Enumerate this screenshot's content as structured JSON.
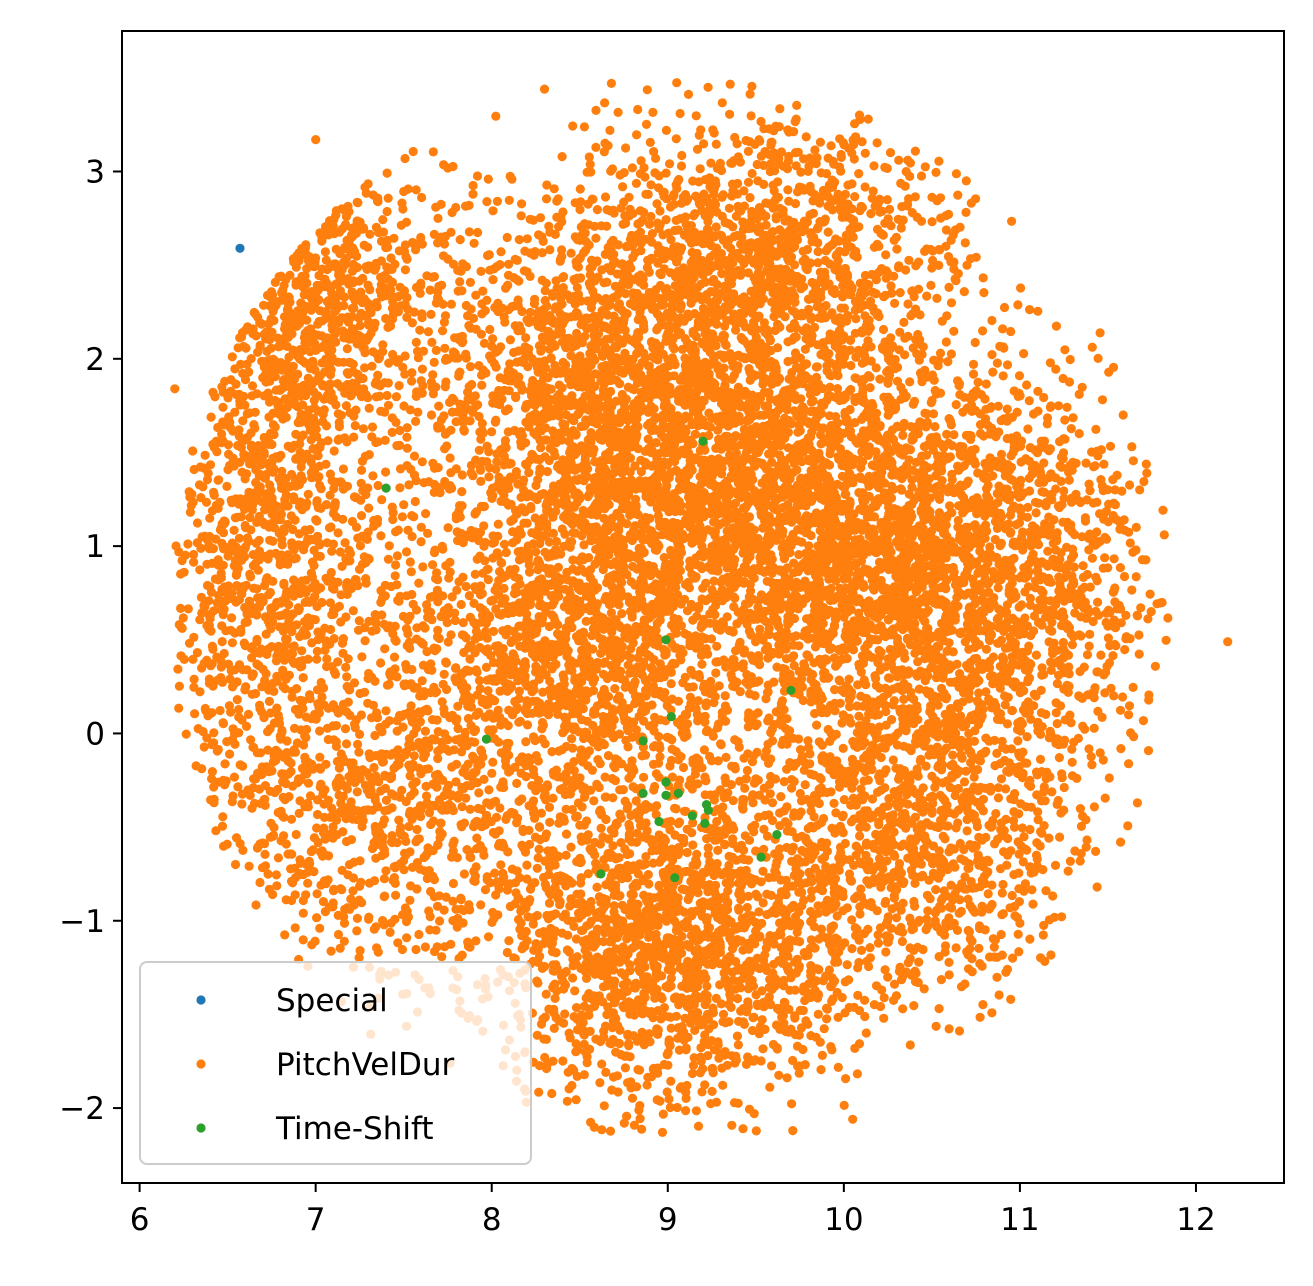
{
  "chart_data": {
    "type": "scatter",
    "title": "",
    "xlabel": "",
    "ylabel": "",
    "xlim": [
      5.9,
      12.5
    ],
    "ylim": [
      -2.4,
      3.75
    ],
    "xticks": [
      6,
      7,
      8,
      9,
      10,
      11,
      12
    ],
    "yticks": [
      -2,
      -1,
      0,
      1,
      2,
      3
    ],
    "grid": false,
    "legend_position": "lower-left",
    "series": [
      {
        "name": "Special",
        "color": "#1f77b4",
        "x": [
          6.57
        ],
        "y": [
          2.59
        ]
      },
      {
        "name": "PitchVelDur",
        "color": "#ff7f0e",
        "cloud": {
          "approx_count": 14000,
          "x_range": [
            6.2,
            11.85
          ],
          "y_range": [
            -2.15,
            3.5
          ],
          "components": [
            {
              "center": [
                7.0,
                2.35
              ],
              "spread": [
                0.35,
                0.45
              ],
              "weight": 0.07
            },
            {
              "center": [
                6.75,
                0.9
              ],
              "spread": [
                0.35,
                0.7
              ],
              "weight": 0.08
            },
            {
              "center": [
                7.3,
                -0.45
              ],
              "spread": [
                0.45,
                0.45
              ],
              "weight": 0.05
            },
            {
              "center": [
                8.6,
                1.75
              ],
              "spread": [
                0.5,
                0.5
              ],
              "weight": 0.12
            },
            {
              "center": [
                8.4,
                0.4
              ],
              "spread": [
                0.5,
                0.55
              ],
              "weight": 0.11
            },
            {
              "center": [
                9.0,
                -1.1
              ],
              "spread": [
                0.55,
                0.45
              ],
              "weight": 0.12
            },
            {
              "center": [
                9.6,
                1.3
              ],
              "spread": [
                0.55,
                0.55
              ],
              "weight": 0.13
            },
            {
              "center": [
                9.5,
                2.6
              ],
              "spread": [
                0.6,
                0.35
              ],
              "weight": 0.08
            },
            {
              "center": [
                10.3,
                0.8
              ],
              "spread": [
                0.55,
                0.6
              ],
              "weight": 0.12
            },
            {
              "center": [
                10.4,
                -0.6
              ],
              "spread": [
                0.5,
                0.5
              ],
              "weight": 0.07
            },
            {
              "center": [
                11.1,
                0.8
              ],
              "spread": [
                0.35,
                0.6
              ],
              "weight": 0.05
            }
          ],
          "outliers": {
            "x": [
              12.18,
              6.2,
              7.0,
              8.68,
              8.3,
              8.97,
              9.71,
              10.05,
              11.43,
              11.82
            ],
            "y": [
              0.49,
              1.84,
              3.17,
              3.47,
              3.44,
              -2.13,
              -2.12,
              -2.06,
              -0.63,
              1.06
            ]
          }
        }
      },
      {
        "name": "Time-Shift",
        "color": "#2ca02c",
        "x": [
          9.2,
          7.4,
          8.99,
          9.7,
          9.02,
          7.97,
          8.86,
          8.99,
          8.86,
          8.99,
          9.06,
          9.22,
          9.23,
          9.14,
          8.95,
          9.21,
          9.62,
          9.53,
          8.62,
          9.04
        ],
        "y": [
          1.56,
          1.31,
          0.5,
          0.23,
          0.09,
          -0.03,
          -0.04,
          -0.26,
          -0.32,
          -0.33,
          -0.32,
          -0.38,
          -0.41,
          -0.44,
          -0.47,
          -0.48,
          -0.54,
          -0.66,
          -0.75,
          -0.77
        ]
      }
    ]
  }
}
